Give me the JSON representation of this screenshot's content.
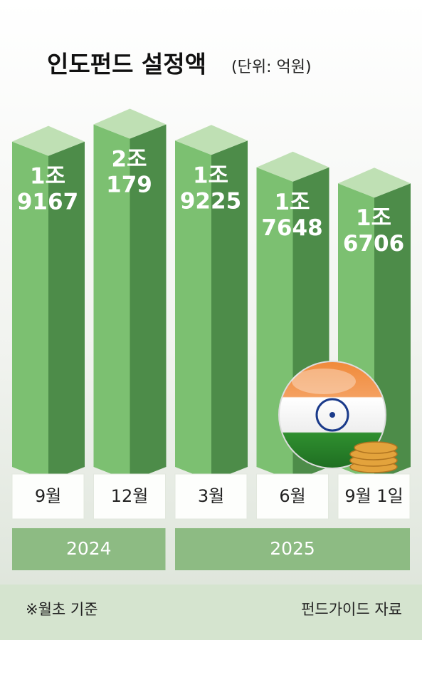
{
  "chart_data": {
    "type": "bar3d",
    "title": "인도펀드 설정액",
    "unit": "(단위: 억원)",
    "groups": [
      {
        "label": "2024",
        "categories": [
          "9월",
          "12월"
        ]
      },
      {
        "label": "2025",
        "categories": [
          "3월",
          "6월",
          "9월 1일"
        ]
      }
    ],
    "values": [
      19167,
      20179,
      19225,
      17648,
      16706
    ],
    "value_labels": [
      "1조\n9167",
      "2조\n179",
      "1조\n9225",
      "1조\n7648",
      "1조\n6706"
    ],
    "ylim": [
      0,
      21000
    ],
    "colors": {
      "front": "#7cc071",
      "side": "#4d8c49",
      "top": "#bfe0b4"
    },
    "footnote": "※월초 기준",
    "source": "펀드가이드 자료"
  }
}
